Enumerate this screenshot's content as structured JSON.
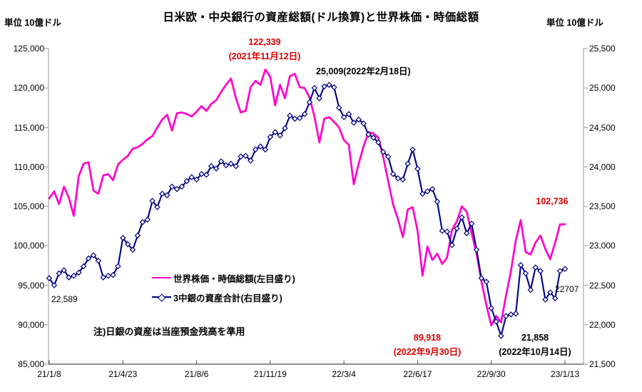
{
  "colors": {
    "magenta": "#ff00cc",
    "navy": "#000082",
    "red": "#dd0000",
    "axis_side": "#a8a8a8",
    "axis_bottom": "#4d4d4d",
    "text": "#000000"
  },
  "note": "注)日銀の資産は当座預金残高を準用",
  "annotations": {
    "magenta_peak_value": "122,339",
    "magenta_peak_date": "(2021年11月12日)",
    "navy_peak": "25,009(2022年2月18日)",
    "magenta_end": "102,736",
    "navy_start": "22,589",
    "magenta_low_value": "89,918",
    "magenta_low_date": "(2022年9月30日)",
    "navy_low_value": "21,858",
    "navy_low_date": "(2022年10月14日)",
    "navy_end": "22707"
  },
  "chart_data": {
    "type": "line",
    "title": "日米欧・中央銀行の資産総額(ドル換算)と世界株価・時価総額",
    "grid": false,
    "legend_position": "inside-lower-left",
    "left_axis": {
      "unit_label": "単位  10億ドル",
      "min": 85000,
      "max": 125000,
      "step": 5000
    },
    "right_axis": {
      "unit_label": "単位  10億ドル",
      "min": 21500,
      "max": 25500,
      "step": 500
    },
    "x_axis": {
      "tick_labels": [
        "21/1/8",
        "21/4/23",
        "21/8/6",
        "21/11/19",
        "22/3/4",
        "22/6/17",
        "22/9/30",
        "23/1/13"
      ],
      "tick_weeks": [
        0,
        15,
        30,
        45,
        60,
        75,
        90,
        105
      ],
      "weeks_total": 105,
      "frequency": "weekly"
    },
    "series": [
      {
        "name": "世界株価・時価総額(左目盛り)",
        "axis": "left",
        "color_key": "magenta",
        "marker": "none",
        "values": [
          106000,
          106900,
          105300,
          107500,
          106100,
          103800,
          108800,
          110400,
          110600,
          107000,
          106600,
          108900,
          109100,
          108300,
          110300,
          110900,
          111400,
          112300,
          112500,
          112900,
          113500,
          113900,
          115000,
          116000,
          116600,
          114600,
          116800,
          116900,
          116700,
          116400,
          117000,
          117700,
          117100,
          118000,
          118450,
          119500,
          120400,
          121200,
          118700,
          116900,
          117100,
          120100,
          120900,
          120400,
          122339,
          121400,
          117800,
          120400,
          118700,
          121500,
          121800,
          120100,
          120000,
          118800,
          116400,
          113100,
          116100,
          116300,
          115700,
          115000,
          113400,
          112800,
          107800,
          110400,
          112600,
          114400,
          114250,
          113700,
          111250,
          108250,
          105250,
          103400,
          101100,
          104600,
          104900,
          101900,
          96200,
          99900,
          98200,
          99000,
          97700,
          98500,
          102000,
          103100,
          105000,
          104300,
          101600,
          99000,
          95500,
          92500,
          89918,
          91100,
          90300,
          93700,
          96800,
          100700,
          103250,
          99200,
          98900,
          100400,
          101300,
          99600,
          98300,
          100400,
          102700,
          102736
        ]
      },
      {
        "name": "3中銀の資産合計(右目盛り)",
        "axis": "right",
        "color_key": "navy",
        "marker": "diamond",
        "values": [
          22589,
          22500,
          22650,
          22690,
          22600,
          22620,
          22660,
          22740,
          22840,
          22880,
          22810,
          22600,
          22620,
          22630,
          22740,
          23100,
          23020,
          22950,
          23130,
          23300,
          23330,
          23570,
          23490,
          23660,
          23640,
          23750,
          23720,
          23750,
          23820,
          23870,
          23840,
          23910,
          23900,
          24010,
          23980,
          24070,
          24020,
          24040,
          24010,
          24130,
          24140,
          24080,
          24220,
          24260,
          24220,
          24380,
          24440,
          24400,
          24490,
          24650,
          24610,
          24620,
          24670,
          24820,
          25000,
          24870,
          25020,
          25040,
          25009,
          24750,
          24630,
          24670,
          24560,
          24600,
          24550,
          24410,
          24370,
          24310,
          24190,
          24130,
          23910,
          23855,
          23840,
          24040,
          24220,
          23975,
          23660,
          23690,
          23720,
          23560,
          23190,
          23180,
          23010,
          23220,
          23360,
          23160,
          23280,
          22950,
          22590,
          22545,
          22210,
          22040,
          21858,
          22110,
          22130,
          22140,
          22756,
          22650,
          22440,
          22726,
          22680,
          22318,
          22410,
          22334,
          22680,
          22707
        ]
      }
    ]
  }
}
